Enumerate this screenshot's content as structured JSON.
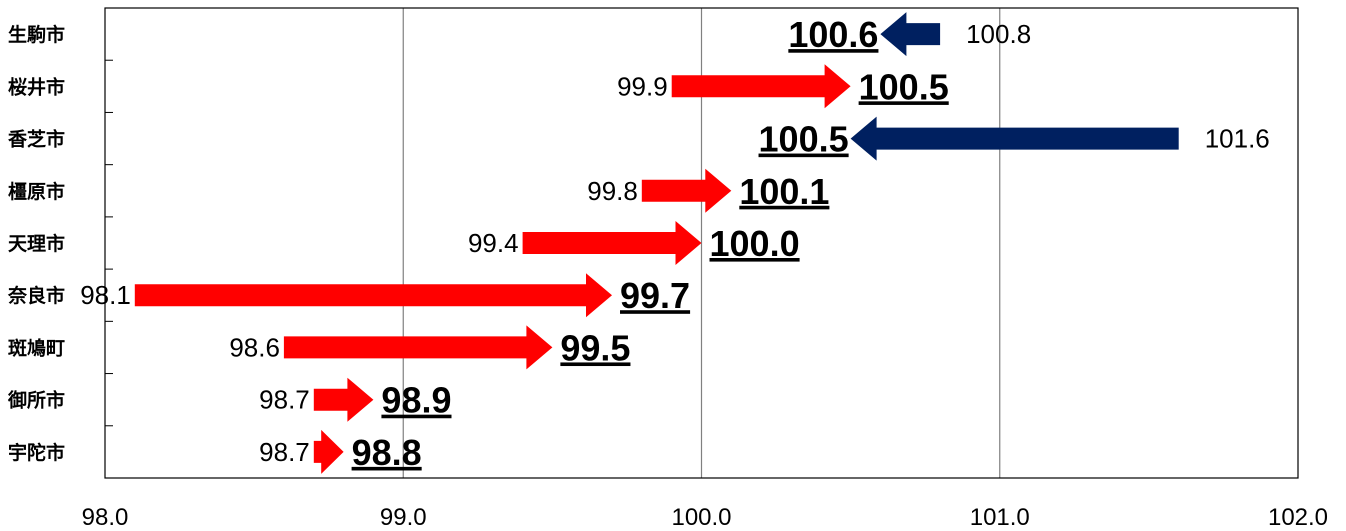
{
  "chart_data": {
    "type": "bar",
    "title": "",
    "xlabel": "",
    "ylabel": "",
    "xlim": [
      98.0,
      102.0
    ],
    "x_ticks": [
      "98.0",
      "99.0",
      "100.0",
      "101.0",
      "102.0"
    ],
    "grid": "vertical",
    "categories": [
      "生駒市",
      "桜井市",
      "香芝市",
      "橿原市",
      "天理市",
      "奈良市",
      "斑鳩町",
      "御所市",
      "宇陀市"
    ],
    "series": [
      {
        "values": [
          100.8,
          99.9,
          101.6,
          99.8,
          99.4,
          98.1,
          98.6,
          98.7,
          98.7
        ]
      },
      {
        "values": [
          100.6,
          100.5,
          100.5,
          100.1,
          100.0,
          99.7,
          99.5,
          98.9,
          98.8
        ]
      }
    ],
    "from_labels": [
      "100.8",
      "99.9",
      "101.6",
      "99.8",
      "99.4",
      "98.1",
      "98.6",
      "98.7",
      "98.7"
    ],
    "to_labels": [
      "100.6",
      "100.5",
      "100.5",
      "100.1",
      "100.0",
      "99.7",
      "99.5",
      "98.9",
      "98.8"
    ],
    "colors": {
      "increase": "#ff0000",
      "decrease": "#002060",
      "grid": "#808080",
      "axis": "#000000"
    }
  }
}
